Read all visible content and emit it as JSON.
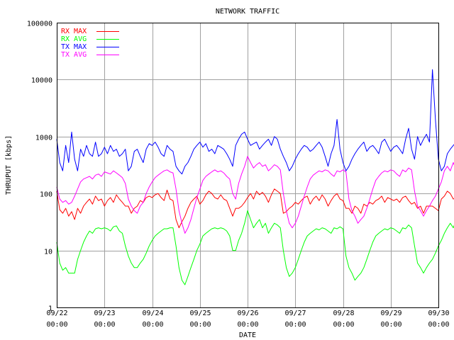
{
  "chart_data": {
    "type": "line",
    "title": "NETWORK TRAFFIC",
    "xlabel": "DATE",
    "ylabel": "THRUPUT [kbps]",
    "y_scale": "log",
    "ylim": [
      1,
      100000
    ],
    "xlim": [
      0,
      8
    ],
    "y_ticks": [
      "1",
      "10",
      "100",
      "1000",
      "10000",
      "100000"
    ],
    "x_ticks": [
      {
        "date": "09/22",
        "time": "00:00"
      },
      {
        "date": "09/23",
        "time": "00:00"
      },
      {
        "date": "09/24",
        "time": "00:00"
      },
      {
        "date": "09/25",
        "time": "00:00"
      },
      {
        "date": "09/26",
        "time": "00:00"
      },
      {
        "date": "09/27",
        "time": "00:00"
      },
      {
        "date": "09/28",
        "time": "00:00"
      },
      {
        "date": "09/29",
        "time": "00:00"
      },
      {
        "date": "09/30",
        "time": "00:00"
      }
    ],
    "grid": true,
    "legend_position": "top-left",
    "sample_step_days": 0.0625,
    "series": [
      {
        "name": "RX MAX",
        "color": "#ff0000",
        "values": [
          110,
          52,
          45,
          55,
          40,
          48,
          35,
          55,
          45,
          60,
          70,
          80,
          65,
          90,
          75,
          80,
          60,
          75,
          85,
          70,
          95,
          80,
          70,
          60,
          60,
          45,
          55,
          60,
          75,
          70,
          85,
          90,
          85,
          95,
          100,
          85,
          75,
          115,
          80,
          75,
          35,
          25,
          32,
          40,
          55,
          70,
          80,
          90,
          65,
          75,
          95,
          110,
          100,
          85,
          80,
          95,
          80,
          75,
          55,
          40,
          55,
          55,
          60,
          70,
          85,
          100,
          80,
          110,
          95,
          105,
          90,
          70,
          95,
          120,
          110,
          100,
          45,
          48,
          55,
          60,
          70,
          65,
          75,
          85,
          90,
          65,
          80,
          90,
          75,
          95,
          80,
          60,
          75,
          90,
          100,
          80,
          75,
          55,
          55,
          45,
          60,
          55,
          45,
          65,
          60,
          70,
          65,
          75,
          80,
          90,
          70,
          85,
          80,
          75,
          80,
          70,
          85,
          90,
          75,
          65,
          70,
          55,
          60,
          45,
          60,
          60,
          60,
          55,
          50,
          80,
          90,
          110,
          100,
          80,
          85,
          90,
          75,
          80,
          45,
          30,
          25,
          40,
          65,
          80,
          90,
          70,
          75,
          80,
          90,
          70,
          100,
          90,
          80,
          65,
          50,
          45,
          55,
          65,
          75,
          80,
          90,
          85,
          95,
          80,
          75,
          80,
          85,
          90,
          85,
          70,
          55,
          60,
          45,
          40,
          45,
          55,
          60,
          45,
          75,
          90,
          80,
          100,
          75,
          85,
          60,
          90,
          80,
          85,
          70,
          50,
          40,
          22,
          28,
          35,
          50,
          60,
          70,
          90,
          85,
          100,
          75,
          85,
          90,
          100,
          60,
          100,
          80,
          90,
          100,
          80,
          70
        ]
      },
      {
        "name": "RX AVG",
        "color": "#00ff00",
        "values": [
          14,
          6,
          4.5,
          5,
          4,
          4,
          4,
          7,
          10,
          14,
          18,
          22,
          20,
          24,
          25,
          24,
          25,
          24,
          22,
          26,
          27,
          22,
          20,
          12,
          8,
          6,
          5,
          5,
          6,
          7,
          9,
          12,
          15,
          18,
          20,
          22,
          24,
          24,
          25,
          25,
          12,
          5,
          3,
          2.5,
          3.5,
          5,
          7,
          10,
          13,
          18,
          20,
          22,
          24,
          25,
          24,
          25,
          24,
          22,
          18,
          10,
          10,
          15,
          20,
          30,
          50,
          35,
          25,
          30,
          35,
          25,
          30,
          20,
          25,
          30,
          28,
          25,
          10,
          5,
          3.5,
          4,
          5,
          7,
          10,
          14,
          18,
          20,
          22,
          24,
          23,
          25,
          24,
          22,
          20,
          25,
          24,
          26,
          24,
          8,
          5,
          4,
          3,
          3.5,
          4,
          5,
          7,
          10,
          14,
          18,
          20,
          22,
          24,
          23,
          25,
          24,
          22,
          20,
          25,
          24,
          28,
          25,
          12,
          6,
          5,
          4,
          5,
          6,
          7,
          9,
          12,
          15,
          20,
          25,
          30,
          25,
          35,
          25,
          30,
          28,
          25,
          10,
          6,
          8,
          12,
          10,
          8,
          15,
          25,
          30,
          35,
          28,
          22,
          25,
          30,
          28,
          25,
          20,
          12,
          6,
          4,
          4,
          5,
          6,
          8,
          12,
          16,
          20,
          24,
          25,
          28,
          26,
          28,
          25,
          30,
          26,
          24,
          10,
          5,
          4,
          3,
          4,
          5,
          7,
          10,
          14,
          18,
          20,
          24,
          26,
          22,
          25,
          24,
          25,
          24,
          20,
          12,
          5,
          3,
          2.2,
          4,
          6,
          5,
          8,
          12,
          18,
          22,
          20,
          24,
          25,
          30,
          25,
          24,
          26,
          30,
          55,
          30,
          25,
          24,
          28
        ]
      },
      {
        "name": "TX MAX",
        "color": "#0000ff",
        "values": [
          900,
          350,
          250,
          700,
          350,
          1200,
          400,
          250,
          600,
          450,
          700,
          500,
          450,
          800,
          450,
          500,
          650,
          500,
          700,
          550,
          600,
          450,
          500,
          600,
          250,
          300,
          550,
          600,
          450,
          350,
          600,
          750,
          700,
          800,
          650,
          500,
          450,
          700,
          600,
          550,
          300,
          250,
          220,
          300,
          350,
          450,
          600,
          700,
          800,
          650,
          750,
          550,
          600,
          500,
          700,
          650,
          600,
          500,
          400,
          300,
          700,
          900,
          1100,
          1200,
          900,
          700,
          750,
          800,
          600,
          700,
          800,
          900,
          700,
          1000,
          900,
          600,
          450,
          350,
          250,
          300,
          400,
          500,
          600,
          700,
          650,
          550,
          600,
          700,
          800,
          650,
          450,
          300,
          500,
          700,
          2000,
          600,
          350,
          250,
          300,
          400,
          500,
          600,
          700,
          800,
          550,
          650,
          700,
          600,
          500,
          800,
          900,
          700,
          550,
          650,
          700,
          600,
          500,
          900,
          1400,
          600,
          400,
          1000,
          700,
          900,
          1100,
          800,
          15000,
          2000,
          400,
          250,
          300,
          500,
          600,
          700,
          800,
          650,
          550,
          600,
          700,
          800,
          600,
          500,
          800,
          700,
          900,
          1000,
          700,
          600,
          500,
          400,
          300,
          350,
          450,
          550,
          600,
          700,
          800,
          650,
          550,
          600,
          650,
          700,
          550,
          600,
          800,
          700,
          500,
          300,
          250,
          300,
          400,
          500,
          600,
          700,
          550,
          600,
          700,
          800,
          650,
          550,
          600,
          700,
          800,
          700,
          600,
          400,
          300,
          250,
          220,
          300,
          400,
          500,
          600,
          700,
          550,
          600,
          700,
          800,
          650,
          600,
          550,
          600,
          650,
          700,
          600,
          650,
          700
        ]
      },
      {
        "name": "TX AVG",
        "color": "#ff00ff",
        "values": [
          130,
          80,
          70,
          75,
          65,
          70,
          90,
          120,
          160,
          180,
          190,
          200,
          180,
          210,
          220,
          200,
          240,
          230,
          220,
          250,
          230,
          210,
          190,
          150,
          80,
          60,
          50,
          45,
          60,
          70,
          100,
          130,
          160,
          190,
          210,
          230,
          250,
          260,
          240,
          230,
          120,
          50,
          30,
          20,
          25,
          35,
          55,
          85,
          120,
          170,
          200,
          220,
          240,
          260,
          240,
          250,
          230,
          200,
          180,
          100,
          80,
          150,
          220,
          300,
          450,
          350,
          280,
          320,
          350,
          300,
          320,
          250,
          280,
          320,
          300,
          260,
          100,
          50,
          30,
          25,
          30,
          40,
          60,
          90,
          130,
          180,
          210,
          230,
          250,
          240,
          260,
          250,
          220,
          200,
          250,
          240,
          260,
          240,
          80,
          50,
          40,
          30,
          35,
          40,
          55,
          80,
          120,
          170,
          200,
          230,
          250,
          240,
          260,
          250,
          220,
          200,
          260,
          240,
          280,
          260,
          110,
          60,
          50,
          40,
          50,
          60,
          75,
          90,
          120,
          160,
          250,
          300,
          250,
          350,
          250,
          300,
          280,
          250,
          100,
          60,
          80,
          120,
          100,
          80,
          150,
          250,
          300,
          350,
          280,
          220,
          250,
          300,
          280,
          250,
          200,
          120,
          60,
          40,
          40,
          50,
          60,
          80,
          120,
          160,
          200,
          240,
          250,
          280,
          260,
          280,
          250,
          300,
          260,
          240,
          100,
          50,
          40,
          30,
          40,
          50,
          70,
          100,
          140,
          180,
          200,
          240,
          260,
          220,
          250,
          240,
          250,
          240,
          200,
          120,
          50,
          30,
          22,
          40,
          60,
          50,
          80,
          120,
          180,
          220,
          200,
          240,
          250,
          300,
          250,
          240,
          260,
          300,
          200,
          250,
          240,
          280
        ]
      }
    ]
  }
}
